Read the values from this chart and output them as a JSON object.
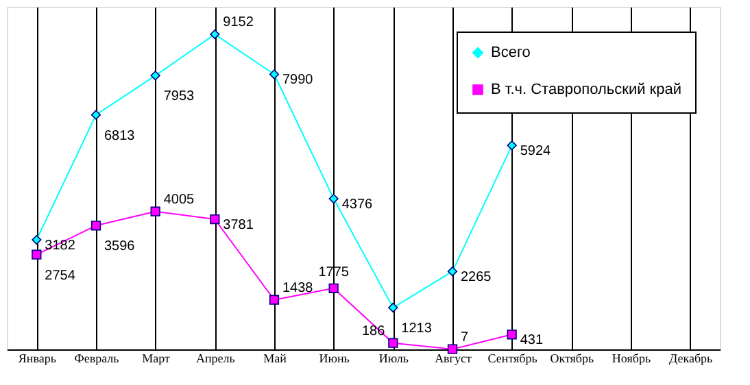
{
  "chart_data": {
    "type": "line",
    "categories": [
      "Январь",
      "Февраль",
      "Март",
      "Апрель",
      "Май",
      "Июнь",
      "Июль",
      "Август",
      "Сентябрь",
      "Октябрь",
      "Ноябрь",
      "Декабрь"
    ],
    "series": [
      {
        "name": "Всего",
        "color": "#00ffff",
        "marker": "diamond",
        "values": [
          3182,
          6813,
          7953,
          9152,
          7990,
          4376,
          1213,
          2265,
          5924,
          null,
          null,
          null
        ]
      },
      {
        "name": "В т.ч. Ставропольский край",
        "color": "#ff00ff",
        "marker": "square",
        "values": [
          2754,
          3596,
          4005,
          3781,
          1438,
          1775,
          186,
          7,
          431,
          null,
          null,
          null
        ]
      }
    ],
    "ylim": [
      0,
      9950
    ],
    "grid": "x",
    "legend": "top right",
    "data_labels": true,
    "tick_labels": "x"
  }
}
